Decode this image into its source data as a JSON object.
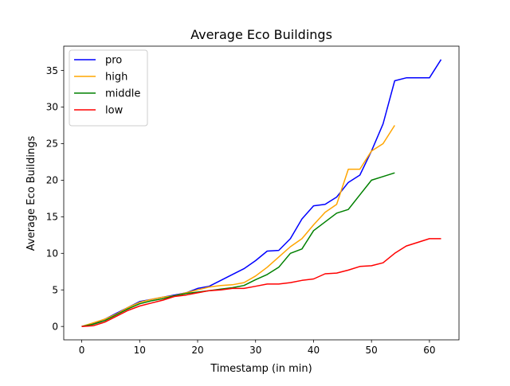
{
  "chart_data": {
    "type": "line",
    "title": "Average Eco Buildings",
    "xlabel": "Timestamp (in min)",
    "ylabel": "Average Eco Buildings",
    "xlim": [
      -3.1,
      65.1
    ],
    "ylim": [
      -1.83,
      38.33
    ],
    "x_ticks": [
      0,
      10,
      20,
      30,
      40,
      50,
      60
    ],
    "y_ticks": [
      0,
      5,
      10,
      15,
      20,
      25,
      30,
      35
    ],
    "grid": false,
    "legend_position": "top-left",
    "series": [
      {
        "name": "pro",
        "color": "#0000ff",
        "x": [
          0,
          2,
          4,
          6,
          8,
          10,
          12,
          14,
          16,
          18,
          20,
          22,
          24,
          26,
          28,
          30,
          32,
          34,
          36,
          38,
          40,
          42,
          44,
          46,
          48,
          50,
          52,
          54,
          56,
          58,
          60,
          62
        ],
        "y": [
          0,
          0.4,
          1.0,
          1.8,
          2.6,
          3.4,
          3.7,
          4.0,
          4.3,
          4.6,
          5.2,
          5.5,
          6.3,
          7.1,
          7.9,
          9.0,
          10.3,
          10.4,
          12.0,
          14.7,
          16.5,
          16.7,
          17.7,
          19.7,
          20.7,
          24.0,
          27.7,
          33.6,
          34.0,
          34.0,
          34.0,
          36.5
        ]
      },
      {
        "name": "high",
        "color": "#ffa500",
        "x": [
          0,
          2,
          4,
          6,
          8,
          10,
          12,
          14,
          16,
          18,
          20,
          22,
          24,
          26,
          28,
          30,
          32,
          34,
          36,
          38,
          40,
          42,
          44,
          46,
          48,
          50,
          52,
          54
        ],
        "y": [
          0,
          0.5,
          1.0,
          1.7,
          2.6,
          3.3,
          3.7,
          4.0,
          4.2,
          4.6,
          5.0,
          5.4,
          5.6,
          5.7,
          6.0,
          6.9,
          8.1,
          9.5,
          10.9,
          12.0,
          13.9,
          15.6,
          16.7,
          21.5,
          21.5,
          24.0,
          25.0,
          27.5
        ]
      },
      {
        "name": "middle",
        "color": "#008000",
        "x": [
          0,
          2,
          4,
          6,
          8,
          10,
          12,
          14,
          16,
          18,
          20,
          22,
          24,
          26,
          28,
          30,
          32,
          34,
          36,
          38,
          40,
          42,
          44,
          46,
          48,
          50,
          52,
          54
        ],
        "y": [
          0,
          0.3,
          0.8,
          1.6,
          2.4,
          3.1,
          3.5,
          3.8,
          4.2,
          4.5,
          4.7,
          4.9,
          5.1,
          5.3,
          5.6,
          6.4,
          7.1,
          8.1,
          10.0,
          10.6,
          13.1,
          14.3,
          15.5,
          16.0,
          18.0,
          20.0,
          20.5,
          21.0
        ]
      },
      {
        "name": "low",
        "color": "#ff0000",
        "x": [
          0,
          2,
          4,
          6,
          8,
          10,
          12,
          14,
          16,
          18,
          20,
          22,
          24,
          26,
          28,
          30,
          32,
          34,
          36,
          38,
          40,
          42,
          44,
          46,
          48,
          50,
          52,
          54,
          56,
          58,
          60,
          62
        ],
        "y": [
          0,
          0.1,
          0.6,
          1.4,
          2.2,
          2.8,
          3.2,
          3.6,
          4.1,
          4.3,
          4.6,
          4.9,
          5.0,
          5.2,
          5.2,
          5.5,
          5.8,
          5.8,
          6.0,
          6.3,
          6.5,
          7.2,
          7.3,
          7.7,
          8.2,
          8.3,
          8.7,
          10.0,
          11.0,
          11.5,
          12.0,
          12.0
        ]
      }
    ]
  }
}
